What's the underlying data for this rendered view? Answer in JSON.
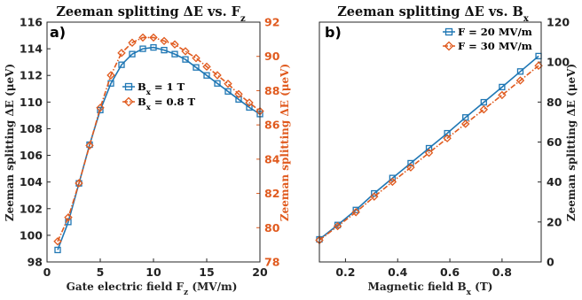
{
  "chart_data": [
    {
      "type": "line",
      "title": "Zeeman splitting ΔE vs. F",
      "title_subscript": "z",
      "panel_label": "a)",
      "xlabel": "Gate electric field F",
      "xlabel_subscript": "z",
      "xlabel_suffix": " (MV/m)",
      "ylabel": "Zeeman splitting ΔE (μeV)",
      "ylabel_right": "Zeeman splitting ΔE (μeV)",
      "xlim": [
        0,
        20
      ],
      "ylim": [
        98,
        116
      ],
      "ylim_right": [
        78,
        92
      ],
      "x_ticks": [
        0,
        5,
        10,
        15,
        20
      ],
      "y_ticks": [
        98,
        100,
        102,
        104,
        106,
        108,
        110,
        112,
        114,
        116
      ],
      "y_ticks_right": [
        78,
        80,
        82,
        84,
        86,
        88,
        90,
        92
      ],
      "legend_position": "center-right",
      "grid": false,
      "series": [
        {
          "name": "B",
          "name_subscript": "x",
          "name_suffix": " = 1 T",
          "axis": "left",
          "color": "#1f77b4",
          "marker": "square",
          "line_style": "solid",
          "x": [
            1,
            2,
            3,
            4,
            5,
            6,
            7,
            8,
            9,
            10,
            11,
            12,
            13,
            14,
            15,
            16,
            17,
            18,
            19,
            20
          ],
          "values": [
            98.9,
            101.0,
            103.9,
            106.8,
            109.4,
            111.4,
            112.8,
            113.6,
            114.0,
            114.1,
            113.9,
            113.6,
            113.2,
            112.6,
            112.0,
            111.4,
            110.8,
            110.2,
            109.6,
            109.1
          ]
        },
        {
          "name": "B",
          "name_subscript": "x",
          "name_suffix": " = 0.8 T",
          "axis": "right",
          "color": "#e05a1e",
          "marker": "diamond",
          "line_style": "dash-dot",
          "x": [
            1,
            2,
            3,
            4,
            5,
            6,
            7,
            8,
            9,
            10,
            11,
            12,
            13,
            14,
            15,
            16,
            17,
            18,
            19,
            20
          ],
          "values": [
            79.2,
            80.6,
            82.6,
            84.8,
            87.0,
            88.9,
            90.2,
            90.8,
            91.1,
            91.1,
            90.9,
            90.7,
            90.3,
            89.9,
            89.4,
            88.9,
            88.4,
            87.8,
            87.3,
            86.8
          ]
        }
      ]
    },
    {
      "type": "line",
      "title": "Zeeman splitting ΔE vs. B",
      "title_subscript": "x",
      "panel_label": "b)",
      "xlabel": "Magnetic field B",
      "xlabel_subscript": "x",
      "xlabel_suffix": " (T)",
      "ylabel": "Zeeman splitting ΔE (μeV)",
      "xlim": [
        0.1,
        0.95
      ],
      "ylim": [
        0,
        120
      ],
      "x_ticks": [
        0.2,
        0.4,
        0.6,
        0.8
      ],
      "x_tick_labels": [
        "0.2",
        "0.4",
        "0.6",
        "0.8"
      ],
      "y_ticks": [
        0,
        20,
        40,
        60,
        80,
        100,
        120
      ],
      "y_axis_side": "right",
      "legend_position": "top-right",
      "grid": false,
      "series": [
        {
          "name": "F = 20 MV/m",
          "color": "#1f77b4",
          "marker": "square",
          "line_style": "solid",
          "x": [
            0.1,
            0.17,
            0.24,
            0.31,
            0.38,
            0.45,
            0.52,
            0.59,
            0.66,
            0.73,
            0.8,
            0.87,
            0.94
          ],
          "values": [
            11.3,
            18.5,
            26.0,
            34.3,
            42.0,
            49.4,
            56.9,
            64.4,
            72.3,
            79.9,
            87.5,
            95.3,
            103.0
          ]
        },
        {
          "name": "F = 30 MV/m",
          "color": "#e05a1e",
          "marker": "diamond",
          "line_style": "dash-dot",
          "x": [
            0.1,
            0.17,
            0.24,
            0.31,
            0.38,
            0.45,
            0.52,
            0.59,
            0.66,
            0.73,
            0.8,
            0.87,
            0.94
          ],
          "values": [
            10.9,
            17.9,
            24.9,
            32.7,
            40.1,
            47.3,
            54.6,
            61.9,
            69.1,
            76.3,
            83.5,
            90.8,
            98.2
          ]
        }
      ]
    }
  ]
}
